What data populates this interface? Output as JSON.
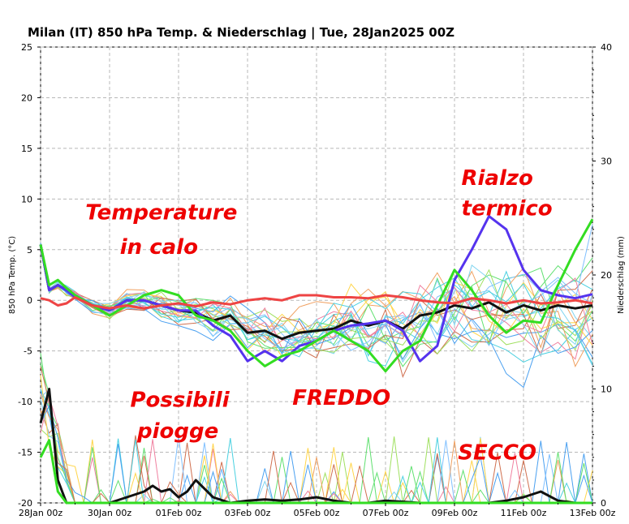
{
  "chart_data": {
    "type": "line",
    "title": "Milan  (IT)  850 hPa Temp. & Niederschlag | Tue, 28Jan2025 00Z",
    "ylabel": "850 hPa Temp. (°C)",
    "ylabel_right": "Niederschlag (mm)",
    "xlabel": "",
    "ylim": [
      -20,
      25
    ],
    "ylim_right": [
      0,
      40
    ],
    "xlim": [
      0,
      16
    ],
    "grid": true,
    "x_ticks": [
      {
        "x": 0,
        "label": "28Jan 00z"
      },
      {
        "x": 2,
        "label": "30Jan 00z"
      },
      {
        "x": 4,
        "label": "01Feb 00z"
      },
      {
        "x": 6,
        "label": "03Feb 00z"
      },
      {
        "x": 8,
        "label": "05Feb 00z"
      },
      {
        "x": 10,
        "label": "07Feb 00z"
      },
      {
        "x": 12,
        "label": "09Feb 00z"
      },
      {
        "x": 14,
        "label": "11Feb 00z"
      },
      {
        "x": 16,
        "label": "13Feb 00z"
      }
    ],
    "y_ticks": [
      25,
      20,
      15,
      10,
      5,
      0,
      -5,
      -10,
      -15,
      -20
    ],
    "y_ticks_right": [
      40,
      30,
      20,
      10,
      0
    ],
    "series": [
      {
        "role": "ensemble_mean_temp",
        "color": "#111111",
        "x": [
          0,
          0.25,
          0.5,
          0.75,
          1,
          1.5,
          2,
          2.5,
          3,
          3.5,
          4,
          4.5,
          5,
          5.5,
          6,
          6.5,
          7,
          7.5,
          8,
          8.5,
          9,
          9.5,
          10,
          10.5,
          11,
          11.5,
          12,
          12.5,
          13,
          13.5,
          14,
          14.5,
          15,
          15.5,
          16
        ],
        "values": [
          5.5,
          1,
          1.5,
          1,
          0.5,
          -0.5,
          -1,
          0,
          0,
          -0.5,
          -1,
          -1.2,
          -2,
          -1.5,
          -3.2,
          -3,
          -3.8,
          -3.2,
          -3,
          -2.8,
          -2,
          -2.5,
          -2,
          -2.8,
          -1.5,
          -1.2,
          -0.5,
          -0.8,
          -0.2,
          -1.2,
          -0.5,
          -1,
          -0.5,
          -0.8,
          -0.5
        ]
      },
      {
        "role": "operational_run",
        "color": "#5533ee",
        "x": [
          0,
          0.25,
          0.5,
          0.75,
          1,
          1.5,
          2,
          2.5,
          3,
          3.5,
          4,
          4.5,
          5,
          5.5,
          6,
          6.5,
          7,
          7.5,
          8,
          8.5,
          9,
          9.5,
          10,
          10.5,
          11,
          11.5,
          12,
          12.5,
          13,
          13.5,
          14,
          14.5,
          15,
          15.5,
          16
        ],
        "values": [
          5.5,
          1,
          1.5,
          1,
          0.3,
          -0.5,
          -1,
          0,
          0,
          -0.5,
          -1,
          -1,
          -2.5,
          -3.5,
          -6,
          -5,
          -6,
          -4.5,
          -4,
          -3,
          -2.5,
          -2.3,
          -2,
          -3,
          -6,
          -4.5,
          2,
          5,
          8.3,
          7,
          3,
          1,
          0.5,
          0.2,
          0.6
        ]
      },
      {
        "role": "control_run",
        "color": "#33dd22",
        "x": [
          0,
          0.25,
          0.5,
          0.75,
          1,
          1.5,
          2,
          2.5,
          3,
          3.5,
          4,
          4.5,
          5,
          5.5,
          6,
          6.5,
          7,
          7.5,
          8,
          8.5,
          9,
          9.5,
          10,
          10.5,
          11,
          11.5,
          12,
          12.5,
          13,
          13.5,
          14,
          14.5,
          15,
          15.5,
          16
        ],
        "values": [
          5.5,
          1.5,
          2,
          1.2,
          0.5,
          -0.5,
          -1.5,
          -0.5,
          0.5,
          1,
          0.5,
          -1.5,
          -2,
          -3,
          -5,
          -6.5,
          -5.5,
          -5,
          -4,
          -3,
          -4,
          -5,
          -7,
          -5,
          -4,
          -0.5,
          3,
          1,
          -1.5,
          -3.2,
          -2,
          -2.2,
          1.5,
          5,
          8
        ]
      },
      {
        "role": "climatology",
        "color": "#ee4444",
        "x": [
          0,
          0.25,
          0.5,
          0.75,
          1,
          1.5,
          2,
          2.5,
          3,
          3.5,
          4,
          4.5,
          5,
          5.5,
          6,
          6.5,
          7,
          7.5,
          8,
          8.5,
          9,
          9.5,
          10,
          10.5,
          11,
          11.5,
          12,
          12.5,
          13,
          13.5,
          14,
          14.5,
          15,
          15.5,
          16
        ],
        "values": [
          0.2,
          0,
          -0.5,
          -0.3,
          0.3,
          -0.5,
          -0.8,
          -0.5,
          -0.8,
          -0.5,
          -0.3,
          -0.6,
          -0.2,
          -0.4,
          0,
          0.2,
          0,
          0.5,
          0.5,
          0.3,
          0.3,
          0.2,
          0.5,
          0.3,
          0,
          -0.2,
          -0.3,
          0.2,
          0,
          -0.3,
          0,
          -0.3,
          -0.2,
          0,
          -0.3
        ]
      },
      {
        "role": "precip_mean",
        "axis": "right",
        "color": "#111111",
        "x": [
          0,
          0.25,
          0.5,
          0.75,
          1,
          1.5,
          2,
          2.5,
          3,
          3.25,
          3.5,
          3.75,
          4,
          4.25,
          4.5,
          5,
          5.5,
          6,
          6.5,
          7,
          7.5,
          8,
          8.5,
          9,
          9.5,
          10,
          11,
          12,
          13,
          13.5,
          14,
          14.5,
          15,
          15.5,
          16
        ],
        "values": [
          7,
          10,
          2,
          0,
          0,
          0,
          0,
          0.5,
          1,
          1.5,
          1,
          1.2,
          0.5,
          1,
          2,
          0.5,
          0,
          0.2,
          0.3,
          0.2,
          0.3,
          0.5,
          0.2,
          0,
          0,
          0.2,
          0,
          0,
          0,
          0.2,
          0.5,
          1,
          0.2,
          0,
          0
        ]
      },
      {
        "role": "precip_control",
        "axis": "right",
        "color": "#33dd22",
        "x": [
          0,
          0.25,
          0.5,
          0.75,
          1,
          2,
          4,
          6,
          8,
          10,
          12,
          14,
          16
        ],
        "values": [
          4,
          5.5,
          1,
          0,
          0,
          0,
          0,
          0,
          0,
          0,
          0,
          0,
          0
        ]
      }
    ],
    "annotations": [
      {
        "text": "Temperature",
        "x": 1.3,
        "y": 8
      },
      {
        "text": "in calo",
        "x": 2.3,
        "y": 4.6
      },
      {
        "text": "Possibili",
        "x": 2.6,
        "y": -10.5
      },
      {
        "text": "piogge",
        "x": 2.8,
        "y": -13.6
      },
      {
        "text": "FREDDO",
        "x": 7.3,
        "y": -10.3
      },
      {
        "text": "Rialzo",
        "x": 12.2,
        "y": 11.4
      },
      {
        "text": "termico",
        "x": 12.2,
        "y": 8.4
      },
      {
        "text": "SECCO",
        "x": 12.1,
        "y": -15.7
      }
    ]
  }
}
